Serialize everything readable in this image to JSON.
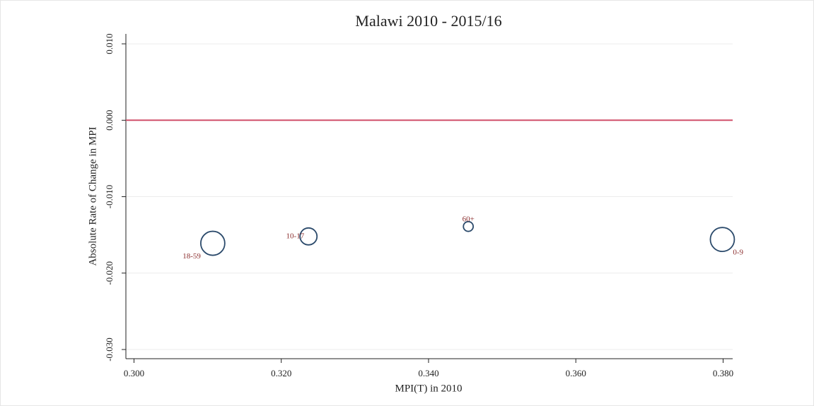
{
  "chart_data": {
    "type": "bubble",
    "title": "Malawi 2010 - 2015/16",
    "xlabel": "MPI(T) in 2010",
    "ylabel": "Absolute Rate of Change in MPI",
    "point_labels": [
      "18-59",
      "10-17",
      "60+",
      "0-9"
    ],
    "label_positions": [
      "sw",
      "w",
      "n",
      "se"
    ],
    "x": [
      0.3107,
      0.3237,
      0.3454,
      0.3799
    ],
    "values": [
      -0.0161,
      -0.0152,
      -0.0139,
      -0.0156
    ],
    "sizes": [
      0.42,
      0.21,
      0.07,
      0.42
    ],
    "color": "#2b4a6b",
    "label_color": "#8b2e2e",
    "xlim": [
      0.2989,
      0.3813
    ],
    "ylim": [
      -0.0312,
      0.0113
    ],
    "xticks": [
      {
        "value": 0.3,
        "label": "0.300"
      },
      {
        "value": 0.32,
        "label": "0.320"
      },
      {
        "value": 0.34,
        "label": "0.340"
      },
      {
        "value": 0.36,
        "label": "0.360"
      },
      {
        "value": 0.38,
        "label": "0.380"
      }
    ],
    "yticks": [
      {
        "value": -0.03,
        "label": "-0.030"
      },
      {
        "value": -0.02,
        "label": "-0.020"
      },
      {
        "value": -0.01,
        "label": "-0.010"
      },
      {
        "value": 0,
        "label": "0.000"
      },
      {
        "value": 0.01,
        "label": "0.010"
      }
    ],
    "hline": 0,
    "hline_color": "#d0506a",
    "grid": true
  }
}
